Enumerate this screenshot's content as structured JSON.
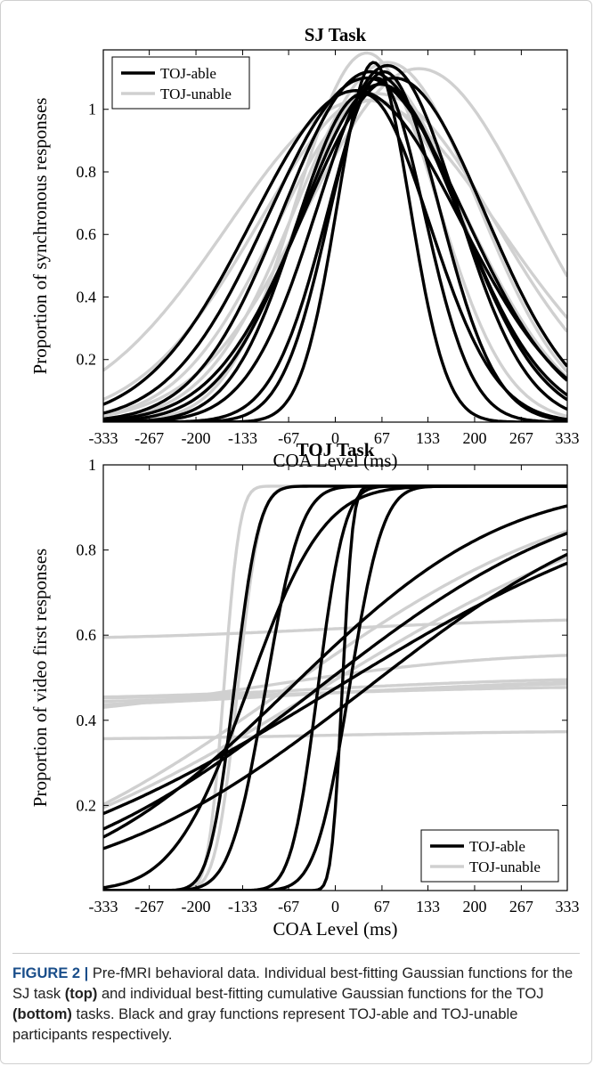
{
  "colors": {
    "toj_able": "#000000",
    "toj_unable": "#d0d0d0"
  },
  "caption": {
    "label": "FIGURE 2 |",
    "part1": "Pre-fMRI behavioral data. Individual best-fitting Gaussian functions for the SJ task",
    "top": "(top)",
    "part2": "and individual best-fitting cumulative Gaussian functions for the TOJ",
    "bottom": "(bottom)",
    "part3": "tasks. Black and gray functions represent TOJ-able and TOJ-unable participants respectively."
  },
  "chart_data": [
    {
      "type": "line",
      "title": "SJ Task",
      "xlabel": "COA Level (ms)",
      "ylabel": "Proportion of synchronous responses",
      "xlim": [
        -333,
        333
      ],
      "ylim": [
        0,
        1.19
      ],
      "xticks": [
        -333,
        -267,
        -200,
        -133,
        -67,
        0,
        67,
        133,
        200,
        267,
        333
      ],
      "xtick_labels": [
        "-333",
        "-267",
        "-200",
        "-133",
        "-67",
        "0",
        "67",
        "133",
        "200",
        "267",
        "333"
      ],
      "yticks": [
        0.2,
        0.4,
        0.6,
        0.8,
        1
      ],
      "ytick_labels": [
        "0.2",
        "0.4",
        "0.6",
        "0.8",
        "1"
      ],
      "legend": {
        "position": "top-left",
        "entries": [
          {
            "label": "TOJ-able",
            "group": "able"
          },
          {
            "label": "TOJ-unable",
            "group": "unable"
          }
        ]
      },
      "function": "gaussian",
      "series": [
        {
          "group": "able",
          "amp": 1.15,
          "mu": 55,
          "sigma": 52
        },
        {
          "group": "able",
          "amp": 1.1,
          "mu": 60,
          "sigma": 68
        },
        {
          "group": "able",
          "amp": 1.12,
          "mu": 70,
          "sigma": 80
        },
        {
          "group": "able",
          "amp": 1.05,
          "mu": 40,
          "sigma": 95
        },
        {
          "group": "able",
          "amp": 1.14,
          "mu": 75,
          "sigma": 100
        },
        {
          "group": "able",
          "amp": 1.08,
          "mu": 65,
          "sigma": 115
        },
        {
          "group": "able",
          "amp": 1.12,
          "mu": 50,
          "sigma": 125
        },
        {
          "group": "able",
          "amp": 1.1,
          "mu": 85,
          "sigma": 130
        },
        {
          "group": "able",
          "amp": 1.1,
          "mu": 45,
          "sigma": 140
        },
        {
          "group": "able",
          "amp": 1.06,
          "mu": 30,
          "sigma": 150
        },
        {
          "group": "unable",
          "amp": 1.18,
          "mu": 45,
          "sigma": 100
        },
        {
          "group": "unable",
          "amp": 1.1,
          "mu": 65,
          "sigma": 115
        },
        {
          "group": "unable",
          "amp": 1.15,
          "mu": 75,
          "sigma": 130
        },
        {
          "group": "unable",
          "amp": 1.03,
          "mu": 55,
          "sigma": 140
        },
        {
          "group": "unable",
          "amp": 1.13,
          "mu": 120,
          "sigma": 160
        },
        {
          "group": "unable",
          "amp": 1.05,
          "mu": 60,
          "sigma": 170
        },
        {
          "group": "unable",
          "amp": 1.03,
          "mu": 40,
          "sigma": 195
        }
      ]
    },
    {
      "type": "line",
      "title": "TOJ Task",
      "xlabel": "COA Level (ms)",
      "ylabel": "Proportion of video first responses",
      "xlim": [
        -333,
        333
      ],
      "ylim": [
        0,
        1
      ],
      "xticks": [
        -333,
        -267,
        -200,
        -133,
        -67,
        0,
        67,
        133,
        200,
        267,
        333
      ],
      "xtick_labels": [
        "-333",
        "-267",
        "-200",
        "-133",
        "-67",
        "0",
        "67",
        "133",
        "200",
        "267",
        "333"
      ],
      "yticks": [
        0.2,
        0.4,
        0.6,
        0.8,
        1
      ],
      "ytick_labels": [
        "0.2",
        "0.4",
        "0.6",
        "0.8",
        "1"
      ],
      "legend": {
        "position": "bottom-right",
        "entries": [
          {
            "label": "TOJ-able",
            "group": "able"
          },
          {
            "label": "TOJ-unable",
            "group": "unable"
          }
        ]
      },
      "function": "cumulative-gaussian",
      "series": [
        {
          "group": "able",
          "lo": 0,
          "hi": 0.95,
          "mu": -145,
          "sigma": 28
        },
        {
          "group": "able",
          "lo": 0,
          "hi": 0.95,
          "mu": -100,
          "sigma": 40
        },
        {
          "group": "able",
          "lo": 0,
          "hi": 0.95,
          "mu": -25,
          "sigma": 30
        },
        {
          "group": "able",
          "lo": 0,
          "hi": 0.95,
          "mu": 10,
          "sigma": 12
        },
        {
          "group": "able",
          "lo": 0,
          "hi": 0.95,
          "mu": 20,
          "sigma": 38
        },
        {
          "group": "able",
          "lo": 0,
          "hi": 0.95,
          "mu": -125,
          "sigma": 85
        },
        {
          "group": "able",
          "lo": 0,
          "hi": 0.95,
          "mu": -65,
          "sigma": 240
        },
        {
          "group": "able",
          "lo": 0,
          "hi": 0.95,
          "mu": -25,
          "sigma": 300
        },
        {
          "group": "able",
          "lo": 0,
          "hi": 0.95,
          "mu": 0,
          "sigma": 380
        },
        {
          "group": "able",
          "lo": 0,
          "hi": 0.95,
          "mu": 45,
          "sigma": 300
        },
        {
          "group": "unable",
          "lo": 0,
          "hi": 0.95,
          "mu": -160,
          "sigma": 18
        },
        {
          "group": "unable",
          "lo": 0,
          "hi": 0.95,
          "mu": -140,
          "sigma": 25
        },
        {
          "group": "unable",
          "lo": 0,
          "hi": 0.95,
          "mu": -70,
          "sigma": 330
        },
        {
          "group": "unable",
          "lo": 0,
          "hi": 0.95,
          "mu": -20,
          "sigma": 380
        },
        {
          "group": "unable",
          "lo": 0.4,
          "hi": 0.56,
          "mu": -105,
          "sigma": 260
        },
        {
          "group": "unable",
          "lo": 0.42,
          "hi": 0.5,
          "mu": -50,
          "sigma": 350
        },
        {
          "group": "unable",
          "lo": 0.45,
          "hi": 0.48,
          "mu": 0,
          "sigma": 250
        },
        {
          "group": "unable",
          "lo": 0.44,
          "hi": 0.49,
          "mu": 0,
          "sigma": 250
        },
        {
          "group": "unable",
          "lo": 0.45,
          "hi": 0.5,
          "mu": 0,
          "sigma": 250
        },
        {
          "group": "unable",
          "lo": 0.59,
          "hi": 0.64,
          "mu": 0,
          "sigma": 250
        },
        {
          "group": "unable",
          "lo": 0.355,
          "hi": 0.375,
          "mu": 0,
          "sigma": 250
        }
      ]
    }
  ]
}
